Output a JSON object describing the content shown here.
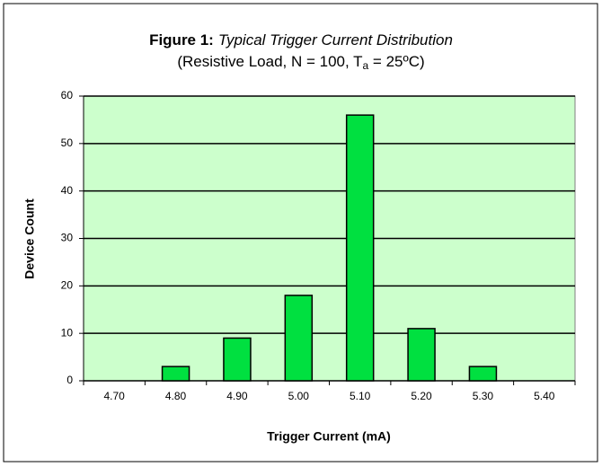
{
  "chart_data": {
    "type": "bar",
    "title_label": "Figure 1:",
    "title": "Typical Trigger  Current Distribution",
    "subtitle_parts": [
      "(Resistive  Load, N = 100, T",
      "a",
      " = 25ºC)"
    ],
    "x_label": "Trigger Current (mA)",
    "y_label": "Device Count",
    "categories": [
      "4.70",
      "4.80",
      "4.90",
      "5.00",
      "5.10",
      "5.20",
      "5.30",
      "5.40"
    ],
    "values": [
      0,
      3,
      9,
      18,
      56,
      11,
      3,
      0
    ],
    "color": "#00e040",
    "background": "#ccffcc",
    "ylim": [
      0,
      60
    ],
    "yticks": [
      0,
      10,
      20,
      30,
      40,
      50,
      60
    ],
    "grid": true
  }
}
